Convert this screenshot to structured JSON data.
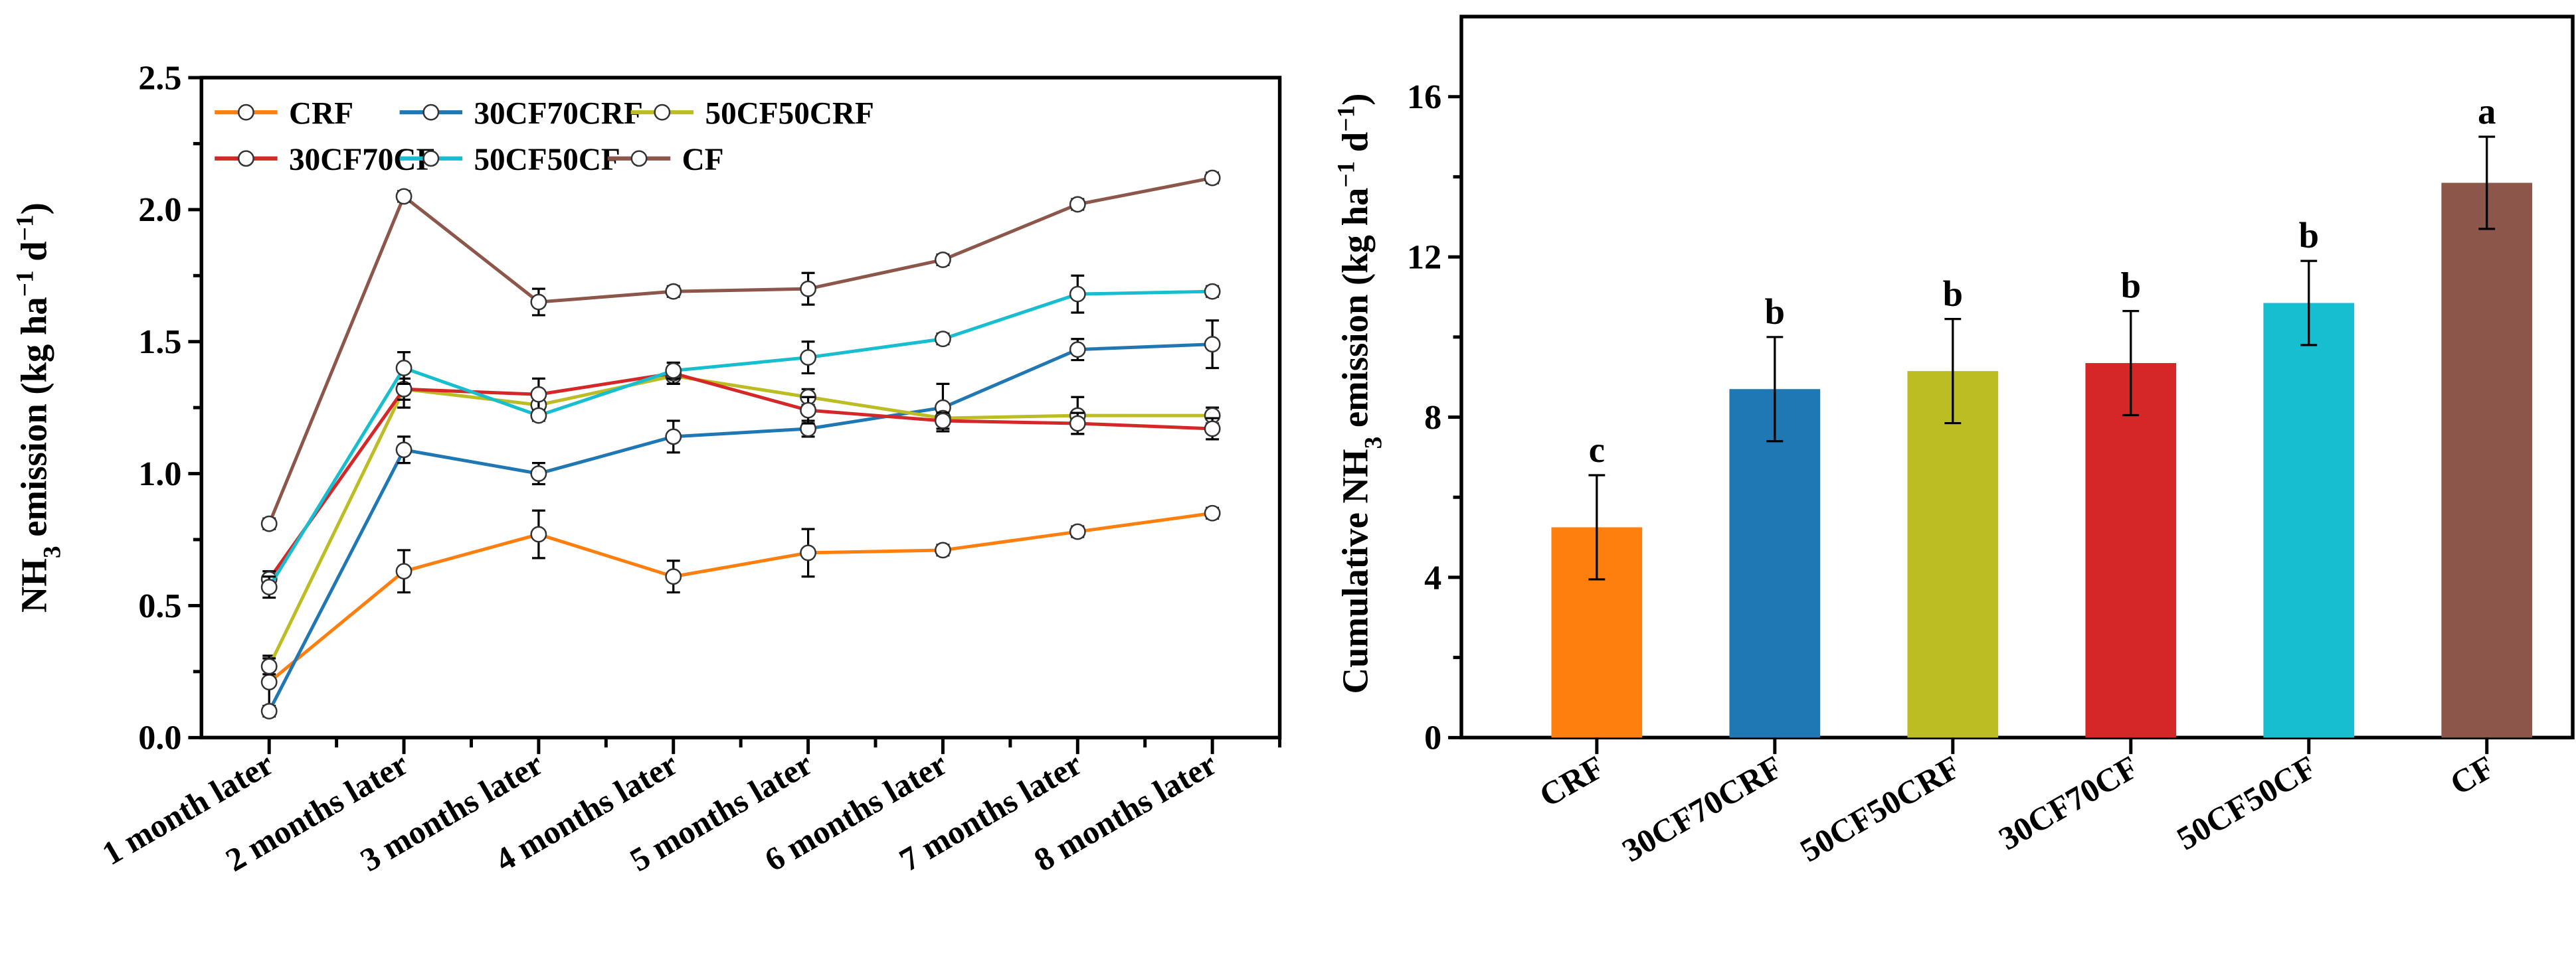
{
  "chart_data": [
    {
      "type": "line",
      "ylabel_parts": [
        "NH",
        "3",
        " emission (kg ha",
        "−1",
        " d",
        "−1",
        ")"
      ],
      "ylabel": "NH3 emission (kg ha−1 d−1)",
      "xlabel": "",
      "ylim": [
        0,
        2.5
      ],
      "yticks": [
        "0.0",
        "0.5",
        "1.0",
        "1.5",
        "2.0",
        "2.5"
      ],
      "categories": [
        "1 month later",
        "2 months later",
        "3 months later",
        "4 months later",
        "5 months later",
        "6 months later",
        "7 months later",
        "8 months later"
      ],
      "legend_placement": "top-left",
      "series": [
        {
          "name": "CRF",
          "color": "#ff7f0e",
          "values": [
            0.21,
            0.63,
            0.77,
            0.61,
            0.7,
            0.71,
            0.78,
            0.85
          ],
          "errors": [
            0.1,
            0.08,
            0.09,
            0.06,
            0.09,
            0.02,
            0.02,
            0.02
          ]
        },
        {
          "name": "30CF70CRF",
          "color": "#1f77b4",
          "values": [
            0.1,
            1.09,
            1.0,
            1.14,
            1.17,
            1.25,
            1.47,
            1.49
          ],
          "errors": [
            0.02,
            0.05,
            0.04,
            0.06,
            0.03,
            0.09,
            0.04,
            0.09
          ]
        },
        {
          "name": "50CF50CRF",
          "color": "#bcbd22",
          "values": [
            0.27,
            1.32,
            1.26,
            1.37,
            1.29,
            1.21,
            1.22,
            1.22
          ],
          "errors": [
            0.03,
            0.07,
            0.04,
            0.03,
            0.03,
            0.02,
            0.07,
            0.03
          ]
        },
        {
          "name": "30CF70CF",
          "color": "#d62728",
          "values": [
            0.6,
            1.32,
            1.3,
            1.38,
            1.24,
            1.2,
            1.19,
            1.17
          ],
          "errors": [
            0.03,
            0.04,
            0.06,
            0.04,
            0.05,
            0.03,
            0.04,
            0.04
          ]
        },
        {
          "name": "50CF50CF",
          "color": "#17becf",
          "values": [
            0.57,
            1.4,
            1.22,
            1.39,
            1.44,
            1.51,
            1.68,
            1.69
          ],
          "errors": [
            0.04,
            0.06,
            0.02,
            0.03,
            0.06,
            0.02,
            0.07,
            0.02
          ]
        },
        {
          "name": "CF",
          "color": "#8c564b",
          "values": [
            0.81,
            2.05,
            1.65,
            1.69,
            1.7,
            1.81,
            2.02,
            2.12
          ],
          "errors": [
            0.02,
            0.02,
            0.05,
            0.02,
            0.06,
            0.02,
            0.02,
            0.02
          ]
        }
      ]
    },
    {
      "type": "bar",
      "ylabel_parts": [
        "Cumulative NH",
        "3",
        " emission (kg ha",
        "−1",
        " d",
        "−1",
        ")"
      ],
      "ylabel": "Cumulative NH3 emission (kg ha−1 d−1)",
      "xlabel": "",
      "ylim": [
        0,
        18
      ],
      "yticks": [
        "0",
        "4",
        "8",
        "12",
        "16"
      ],
      "categories": [
        "CRF",
        "30CF70CRF",
        "50CF50CRF",
        "30CF70CF",
        "50CF50CF",
        "CF"
      ],
      "values": [
        5.25,
        8.7,
        9.15,
        9.35,
        10.85,
        13.85
      ],
      "errors": [
        1.3,
        1.3,
        1.3,
        1.3,
        1.05,
        1.15
      ],
      "letters": [
        "c",
        "b",
        "b",
        "b",
        "b",
        "a"
      ],
      "colors": [
        "#ff7f0e",
        "#1f77b4",
        "#bcbd22",
        "#d62728",
        "#17becf",
        "#8c564b"
      ]
    }
  ]
}
